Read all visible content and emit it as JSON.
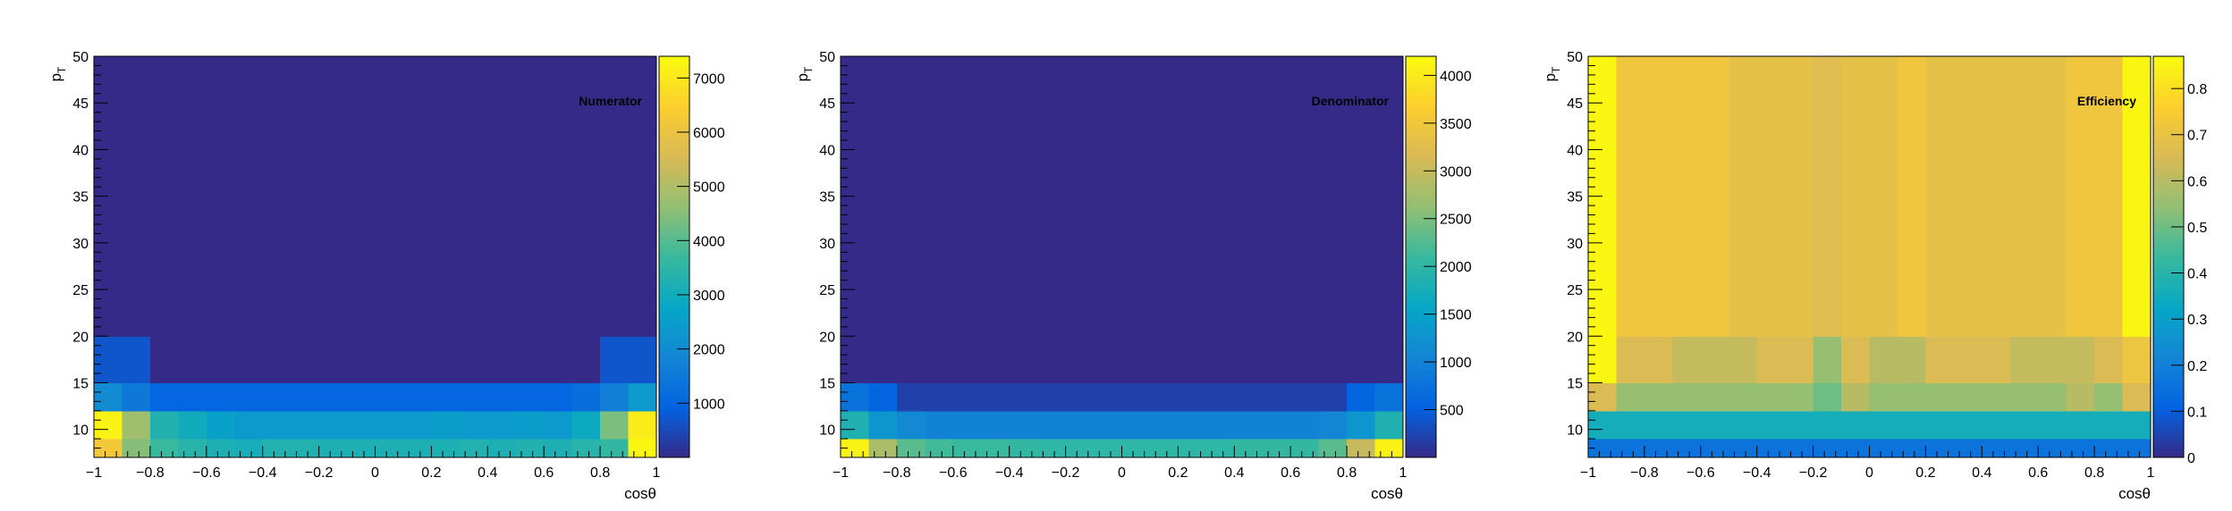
{
  "figure": {
    "background": "#ffffff",
    "palette": "kBird",
    "palette_colors": [
      "#352a87",
      "#0363e1",
      "#1485d4",
      "#06a7c6",
      "#38b99e",
      "#92bf73",
      "#d9ba56",
      "#fcce2e",
      "#f9fb0e"
    ]
  },
  "chart_data": [
    {
      "type": "heatmap",
      "title": "Numerator",
      "xlabel": "cosθ",
      "ylabel": "p",
      "ylabel_subscript": "T",
      "x_edges": [
        -1,
        -0.9,
        -0.8,
        -0.7,
        -0.6,
        -0.5,
        -0.4,
        -0.3,
        -0.2,
        -0.1,
        0,
        0.1,
        0.2,
        0.3,
        0.4,
        0.5,
        0.6,
        0.7,
        0.8,
        0.9,
        1
      ],
      "y_edges": [
        7,
        9,
        12,
        15,
        20,
        50
      ],
      "xlim": [
        -1,
        1
      ],
      "ylim": [
        7,
        50
      ],
      "x_ticks": [
        -1,
        -0.8,
        -0.6,
        -0.4,
        -0.2,
        0,
        0.2,
        0.4,
        0.6,
        0.8,
        1
      ],
      "x_tick_labels": [
        "−1",
        "−0.8",
        "−0.6",
        "−0.4",
        "−0.2",
        "0",
        "0.2",
        "0.4",
        "0.6",
        "0.8",
        "1"
      ],
      "y_ticks": [
        10,
        15,
        20,
        25,
        30,
        35,
        40,
        45,
        50
      ],
      "y_tick_labels": [
        "10",
        "15",
        "20",
        "25",
        "30",
        "35",
        "40",
        "45",
        "50"
      ],
      "zlim": [
        0,
        7400
      ],
      "z_ticks": [
        1000,
        2000,
        3000,
        4000,
        5000,
        6000,
        7000
      ],
      "z_tick_labels": [
        "1000",
        "2000",
        "3000",
        "4000",
        "5000",
        "6000",
        "7000"
      ],
      "values": [
        [
          6200,
          4500,
          3700,
          3400,
          3200,
          3100,
          3300,
          3300,
          3200,
          3200,
          3200,
          3200,
          3200,
          3300,
          3200,
          3300,
          3200,
          3400,
          3600,
          7300
        ],
        [
          7200,
          4800,
          3300,
          3000,
          2600,
          2400,
          2400,
          2400,
          2400,
          2400,
          2400,
          2400,
          2500,
          2400,
          2400,
          2500,
          2400,
          2900,
          4400,
          7100
        ],
        [
          2000,
          1500,
          1000,
          1000,
          1000,
          1000,
          1000,
          1000,
          1000,
          1000,
          1000,
          1000,
          1000,
          1000,
          1000,
          1000,
          1000,
          1200,
          1700,
          2400
        ],
        [
          700,
          700,
          0,
          0,
          0,
          0,
          0,
          0,
          0,
          0,
          0,
          0,
          0,
          0,
          0,
          0,
          0,
          0,
          700,
          700
        ],
        [
          0,
          0,
          0,
          0,
          0,
          0,
          0,
          0,
          0,
          0,
          0,
          0,
          0,
          0,
          0,
          0,
          0,
          0,
          0,
          0
        ]
      ]
    },
    {
      "type": "heatmap",
      "title": "Denominator",
      "xlabel": "cosθ",
      "ylabel": "p",
      "ylabel_subscript": "T",
      "x_edges": [
        -1,
        -0.9,
        -0.8,
        -0.7,
        -0.6,
        -0.5,
        -0.4,
        -0.3,
        -0.2,
        -0.1,
        0,
        0.1,
        0.2,
        0.3,
        0.4,
        0.5,
        0.6,
        0.7,
        0.8,
        0.9,
        1
      ],
      "y_edges": [
        7,
        9,
        12,
        15,
        20,
        50
      ],
      "xlim": [
        -1,
        1
      ],
      "ylim": [
        7,
        50
      ],
      "x_ticks": [
        -1,
        -0.8,
        -0.6,
        -0.4,
        -0.2,
        0,
        0.2,
        0.4,
        0.6,
        0.8,
        1
      ],
      "x_tick_labels": [
        "−1",
        "−0.8",
        "−0.6",
        "−0.4",
        "−0.2",
        "0",
        "0.2",
        "0.4",
        "0.6",
        "0.8",
        "1"
      ],
      "y_ticks": [
        10,
        15,
        20,
        25,
        30,
        35,
        40,
        45,
        50
      ],
      "y_tick_labels": [
        "10",
        "15",
        "20",
        "25",
        "30",
        "35",
        "40",
        "45",
        "50"
      ],
      "zlim": [
        0,
        4200
      ],
      "z_ticks": [
        500,
        1000,
        1500,
        2000,
        2500,
        3000,
        3500,
        4000
      ],
      "z_tick_labels": [
        "500",
        "1000",
        "1500",
        "2000",
        "2500",
        "3000",
        "3500",
        "4000"
      ],
      "values": [
        [
          4100,
          2800,
          2300,
          2150,
          2100,
          2100,
          2050,
          2000,
          2000,
          2000,
          2000,
          2000,
          2000,
          2000,
          2050,
          2050,
          2050,
          2300,
          3000,
          4100
        ],
        [
          1850,
          1300,
          1100,
          1000,
          1000,
          1000,
          1000,
          1000,
          1000,
          1000,
          1000,
          1000,
          1000,
          1000,
          1000,
          1000,
          1000,
          1050,
          1300,
          1850
        ],
        [
          750,
          550,
          200,
          200,
          200,
          200,
          200,
          200,
          200,
          200,
          200,
          200,
          200,
          200,
          200,
          200,
          200,
          200,
          550,
          750
        ],
        [
          0,
          0,
          0,
          0,
          0,
          0,
          0,
          0,
          0,
          0,
          0,
          0,
          0,
          0,
          0,
          0,
          0,
          0,
          0,
          0
        ],
        [
          0,
          0,
          0,
          0,
          0,
          0,
          0,
          0,
          0,
          0,
          0,
          0,
          0,
          0,
          0,
          0,
          0,
          0,
          0,
          0
        ]
      ]
    },
    {
      "type": "heatmap",
      "title": "Efficiency",
      "xlabel": "cosθ",
      "ylabel": "p",
      "ylabel_subscript": "T",
      "x_edges": [
        -1,
        -0.9,
        -0.8,
        -0.7,
        -0.6,
        -0.5,
        -0.4,
        -0.3,
        -0.2,
        -0.1,
        0,
        0.1,
        0.2,
        0.3,
        0.4,
        0.5,
        0.6,
        0.7,
        0.8,
        0.9,
        1
      ],
      "y_edges": [
        7,
        9,
        12,
        15,
        20,
        50
      ],
      "xlim": [
        -1,
        1
      ],
      "ylim": [
        7,
        50
      ],
      "x_ticks": [
        -1,
        -0.8,
        -0.6,
        -0.4,
        -0.2,
        0,
        0.2,
        0.4,
        0.6,
        0.8,
        1
      ],
      "x_tick_labels": [
        "−1",
        "−0.8",
        "−0.6",
        "−0.4",
        "−0.2",
        "0",
        "0.2",
        "0.4",
        "0.6",
        "0.8",
        "1"
      ],
      "y_ticks": [
        10,
        15,
        20,
        25,
        30,
        35,
        40,
        45,
        50
      ],
      "y_tick_labels": [
        "10",
        "15",
        "20",
        "25",
        "30",
        "35",
        "40",
        "45",
        "50"
      ],
      "zlim": [
        0,
        0.87
      ],
      "z_ticks": [
        0,
        0.1,
        0.2,
        0.3,
        0.4,
        0.5,
        0.6,
        0.7,
        0.8
      ],
      "z_tick_labels": [
        "0",
        "0.1",
        "0.2",
        "0.3",
        "0.4",
        "0.5",
        "0.6",
        "0.7",
        "0.8"
      ],
      "values": [
        [
          0.16,
          0.16,
          0.16,
          0.16,
          0.16,
          0.16,
          0.16,
          0.16,
          0.16,
          0.16,
          0.16,
          0.16,
          0.16,
          0.16,
          0.16,
          0.16,
          0.16,
          0.16,
          0.16,
          0.16
        ],
        [
          0.36,
          0.36,
          0.36,
          0.36,
          0.36,
          0.36,
          0.36,
          0.36,
          0.36,
          0.36,
          0.36,
          0.36,
          0.36,
          0.36,
          0.36,
          0.36,
          0.36,
          0.36,
          0.36,
          0.36
        ],
        [
          0.66,
          0.55,
          0.55,
          0.55,
          0.55,
          0.55,
          0.55,
          0.55,
          0.5,
          0.6,
          0.55,
          0.55,
          0.55,
          0.55,
          0.55,
          0.55,
          0.55,
          0.6,
          0.55,
          0.66
        ],
        [
          0.86,
          0.66,
          0.66,
          0.62,
          0.62,
          0.62,
          0.66,
          0.66,
          0.55,
          0.66,
          0.6,
          0.6,
          0.66,
          0.66,
          0.66,
          0.62,
          0.62,
          0.62,
          0.66,
          0.71
        ],
        [
          0.86,
          0.72,
          0.72,
          0.72,
          0.72,
          0.69,
          0.69,
          0.69,
          0.67,
          0.69,
          0.69,
          0.72,
          0.69,
          0.69,
          0.69,
          0.69,
          0.69,
          0.72,
          0.72,
          0.86
        ]
      ]
    }
  ]
}
